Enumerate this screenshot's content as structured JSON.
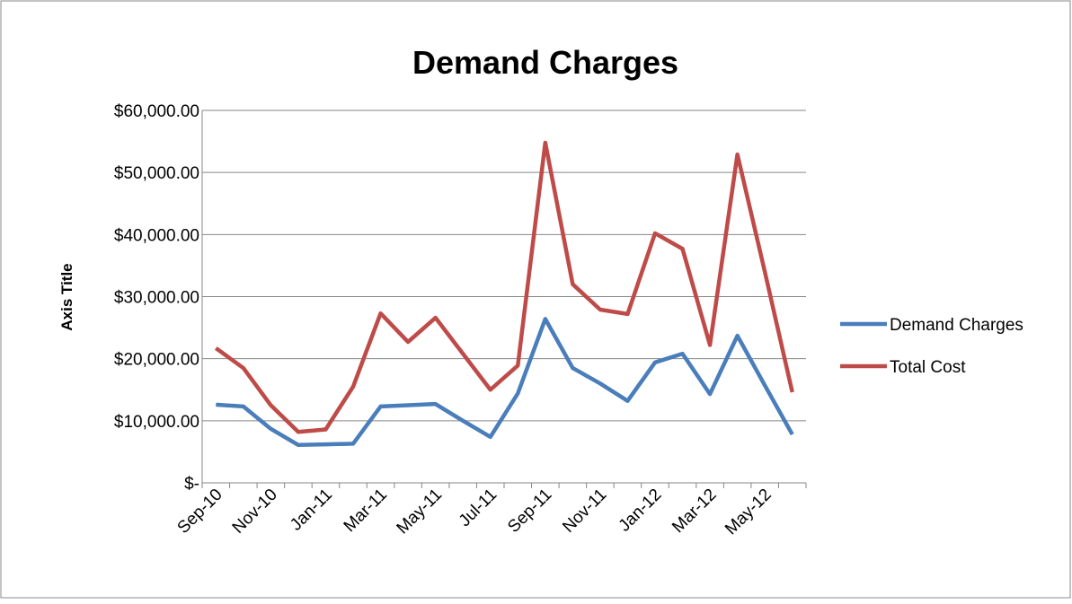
{
  "chart_data": {
    "type": "line",
    "title": "Demand Charges",
    "y_label": "Axis Title",
    "categories": [
      "Sep-10",
      null,
      "Nov-10",
      null,
      "Jan-11",
      null,
      "Mar-11",
      null,
      "May-11",
      null,
      "Jul-11",
      null,
      "Sep-11",
      null,
      "Nov-11",
      null,
      "Jan-12",
      null,
      "Mar-12",
      null,
      "May-12",
      null
    ],
    "series": [
      {
        "name": "Demand Charges",
        "color": "#4a7ebb",
        "values": [
          12600,
          12300,
          8700,
          6100,
          6200,
          6300,
          12300,
          12500,
          12700,
          10000,
          7400,
          14400,
          26400,
          18500,
          16000,
          13200,
          19400,
          20800,
          14300,
          23700,
          15700,
          7800
        ]
      },
      {
        "name": "Total Cost",
        "color": "#be4b48",
        "values": [
          21700,
          18500,
          12500,
          8200,
          8600,
          15500,
          27300,
          22700,
          26600,
          20800,
          15000,
          18900,
          54800,
          32000,
          27900,
          27200,
          40200,
          37700,
          22200,
          52900,
          34000,
          14600
        ]
      }
    ],
    "ylim": [
      0,
      60000
    ],
    "yticks": [
      {
        "value": 0,
        "label": "$-"
      },
      {
        "value": 10000,
        "label": "$10,000.00"
      },
      {
        "value": 20000,
        "label": "$20,000.00"
      },
      {
        "value": 30000,
        "label": "$30,000.00"
      },
      {
        "value": 40000,
        "label": "$40,000.00"
      },
      {
        "value": 50000,
        "label": "$50,000.00"
      },
      {
        "value": 60000,
        "label": "$60,000.00"
      }
    ],
    "grid": true,
    "legend": "right"
  }
}
